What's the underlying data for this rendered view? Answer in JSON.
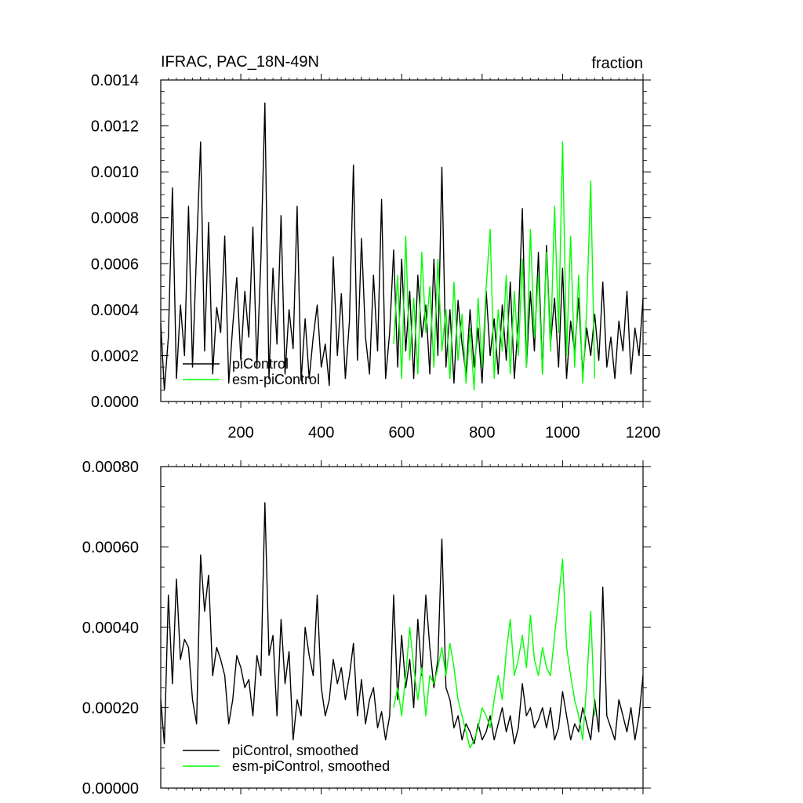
{
  "chart_data": [
    {
      "type": "line",
      "title_left": "IFRAC, PAC_18N-49N",
      "title_right": "fraction",
      "xlim": [
        1,
        1200
      ],
      "ylim": [
        0,
        0.0014
      ],
      "x_ticks": [
        200,
        400,
        600,
        800,
        1000,
        1200
      ],
      "x_tick_labels": [
        "200",
        "400",
        "600",
        "800",
        "1000",
        "1200"
      ],
      "y_ticks": [
        0,
        0.0002,
        0.0004,
        0.0006,
        0.0008,
        0.001,
        0.0012,
        0.0014
      ],
      "y_tick_labels": [
        "0.0000",
        "0.0002",
        "0.0004",
        "0.0006",
        "0.0008",
        "0.0010",
        "0.0012",
        "0.0014"
      ],
      "legend_placement": "lower-left",
      "series": [
        {
          "name": "piControl",
          "color": "#000000",
          "x": [
            1,
            10,
            20,
            30,
            40,
            50,
            60,
            70,
            80,
            90,
            100,
            110,
            120,
            130,
            140,
            150,
            160,
            170,
            180,
            190,
            200,
            210,
            220,
            230,
            240,
            250,
            260,
            270,
            280,
            290,
            300,
            310,
            320,
            330,
            340,
            350,
            360,
            370,
            380,
            390,
            400,
            410,
            420,
            430,
            440,
            450,
            460,
            470,
            480,
            490,
            500,
            510,
            520,
            530,
            540,
            550,
            560,
            570,
            580,
            590,
            600,
            610,
            620,
            630,
            640,
            650,
            660,
            670,
            680,
            690,
            700,
            710,
            720,
            730,
            740,
            750,
            760,
            770,
            780,
            790,
            800,
            810,
            820,
            830,
            840,
            850,
            860,
            870,
            880,
            890,
            900,
            910,
            920,
            930,
            940,
            950,
            960,
            970,
            980,
            990,
            1000,
            1010,
            1020,
            1030,
            1040,
            1050,
            1060,
            1070,
            1080,
            1090,
            1100,
            1110,
            1120,
            1130,
            1140,
            1150,
            1160,
            1170,
            1180,
            1190,
            1200
          ],
          "values": [
            0.00034,
            5e-05,
            0.00028,
            0.00093,
            0.0001,
            0.00042,
            0.0002,
            0.00085,
            0.00015,
            0.00066,
            0.00113,
            0.00022,
            0.00078,
            0.00012,
            0.00041,
            0.0003,
            0.00072,
            8e-05,
            0.00033,
            0.00054,
            0.00018,
            0.00048,
            0.00028,
            0.00076,
            0.00015,
            0.00062,
            0.0013,
            0.0001,
            0.00058,
            0.00025,
            0.00081,
            0.00012,
            0.0004,
            0.00023,
            0.00085,
            9e-05,
            0.00036,
            0.0001,
            0.00028,
            0.00042,
            0.00015,
            0.00025,
            7e-05,
            0.00063,
            0.0002,
            0.00047,
            0.0001,
            0.00035,
            0.00103,
            0.00018,
            0.00071,
            0.00028,
            0.00012,
            0.00055,
            0.00022,
            0.00088,
            0.0001,
            0.0003,
            0.00066,
            0.00015,
            0.00062,
            0.00022,
            0.00048,
            0.0001,
            0.00055,
            0.00028,
            0.00042,
            0.00012,
            0.00062,
            0.0002,
            0.00102,
            0.00015,
            0.0004,
            8e-05,
            0.00044,
            0.00025,
            0.00012,
            0.0004,
            0.00015,
            0.00032,
            8e-05,
            0.00048,
            0.0002,
            0.00036,
            0.00012,
            0.00042,
            0.00018,
            0.00052,
            0.0001,
            0.00035,
            0.00084,
            0.00015,
            0.00048,
            0.00022,
            0.00065,
            0.00012,
            0.00068,
            0.00025,
            0.00045,
            0.00015,
            0.00058,
            0.0001,
            0.00035,
            0.00022,
            0.00045,
            0.00012,
            0.00032,
            0.0002,
            0.00038,
            0.00018,
            0.00052,
            0.00015,
            0.00028,
            0.0001,
            0.00035,
            0.00022,
            0.00048,
            0.00012,
            0.00032,
            0.0002,
            0.00045
          ]
        },
        {
          "name": "esm-piControl",
          "color": "#00ff00",
          "x": [
            580,
            590,
            600,
            610,
            620,
            630,
            640,
            650,
            660,
            670,
            680,
            690,
            700,
            710,
            720,
            730,
            740,
            750,
            760,
            770,
            780,
            790,
            800,
            810,
            820,
            830,
            840,
            850,
            860,
            870,
            880,
            890,
            900,
            910,
            920,
            930,
            940,
            950,
            960,
            970,
            980,
            990,
            1000,
            1010,
            1020,
            1030,
            1040,
            1050,
            1060,
            1070,
            1080
          ],
          "values": [
            0.00025,
            0.00055,
            0.0001,
            0.00072,
            0.00018,
            0.00045,
            0.00012,
            0.00065,
            0.0003,
            0.0005,
            0.00015,
            0.00062,
            0.00022,
            0.0004,
            0.0001,
            0.00052,
            0.00018,
            0.00038,
            8e-05,
            0.00032,
            5e-05,
            0.00045,
            0.00015,
            0.0005,
            0.00075,
            0.0001,
            0.0004,
            0.00022,
            0.00055,
            0.00012,
            0.00048,
            0.0002,
            0.00062,
            0.00015,
            0.00075,
            0.00028,
            0.00055,
            0.00012,
            0.00065,
            0.00022,
            0.00085,
            0.0003,
            0.00113,
            0.0002,
            0.00072,
            0.00015,
            0.00055,
            8e-05,
            0.0004,
            0.00096,
            0.0001
          ]
        }
      ]
    },
    {
      "type": "line",
      "xlim": [
        1,
        1200
      ],
      "ylim": [
        0,
        0.0008
      ],
      "x_ticks": [
        200,
        400,
        600,
        800,
        1000,
        1200
      ],
      "y_ticks": [
        0,
        0.0002,
        0.0004,
        0.0006,
        0.0008
      ],
      "y_tick_labels": [
        "0.00000",
        "0.00020",
        "0.00040",
        "0.00060",
        "0.00080"
      ],
      "legend_placement": "lower-left",
      "series": [
        {
          "name": "piControl, smoothed",
          "color": "#000000",
          "x": [
            1,
            10,
            20,
            30,
            40,
            50,
            60,
            70,
            80,
            90,
            100,
            110,
            120,
            130,
            140,
            150,
            160,
            170,
            180,
            190,
            200,
            210,
            220,
            230,
            240,
            250,
            260,
            270,
            280,
            290,
            300,
            310,
            320,
            330,
            340,
            350,
            360,
            370,
            380,
            390,
            400,
            410,
            420,
            430,
            440,
            450,
            460,
            470,
            480,
            490,
            500,
            510,
            520,
            530,
            540,
            550,
            560,
            570,
            580,
            590,
            600,
            610,
            620,
            630,
            640,
            650,
            660,
            670,
            680,
            690,
            700,
            710,
            720,
            730,
            740,
            750,
            760,
            770,
            780,
            790,
            800,
            810,
            820,
            830,
            840,
            850,
            860,
            870,
            880,
            890,
            900,
            910,
            920,
            930,
            940,
            950,
            960,
            970,
            980,
            990,
            1000,
            1010,
            1020,
            1030,
            1040,
            1050,
            1060,
            1070,
            1080,
            1090,
            1100,
            1110,
            1120,
            1130,
            1140,
            1150,
            1160,
            1170,
            1180,
            1190,
            1200
          ],
          "values": [
            0.00022,
            0.00011,
            0.00048,
            0.00026,
            0.00052,
            0.00032,
            0.00037,
            0.00035,
            0.00022,
            0.00016,
            0.00058,
            0.00044,
            0.00053,
            0.00028,
            0.00035,
            0.00032,
            0.00028,
            0.00016,
            0.00022,
            0.00033,
            0.0003,
            0.00025,
            0.00027,
            0.00018,
            0.00033,
            0.00028,
            0.00071,
            0.00033,
            0.00038,
            0.00018,
            0.00042,
            0.00026,
            0.00034,
            0.00012,
            0.00022,
            0.00018,
            0.0004,
            0.00033,
            0.00028,
            0.00048,
            0.00025,
            0.00018,
            0.00022,
            0.00032,
            0.00026,
            0.0003,
            0.00022,
            0.00028,
            0.00036,
            0.00018,
            0.00027,
            0.00016,
            0.00022,
            0.00025,
            0.00015,
            0.00019,
            0.00012,
            0.00018,
            0.00048,
            0.00022,
            0.00038,
            0.00025,
            0.00032,
            0.0002,
            0.00042,
            0.00028,
            0.00048,
            0.00035,
            0.00025,
            0.00032,
            0.00062,
            0.00025,
            0.00022,
            0.00015,
            0.00018,
            0.00012,
            0.00016,
            0.00014,
            0.00011,
            0.00016,
            0.00012,
            0.00014,
            0.00018,
            0.00012,
            0.00016,
            0.0002,
            0.00014,
            0.00018,
            0.00011,
            0.00015,
            0.00026,
            0.00018,
            0.0002,
            0.00015,
            0.00017,
            0.0002,
            0.00015,
            0.0002,
            0.00012,
            0.00015,
            0.00024,
            0.00018,
            0.00012,
            0.00016,
            0.00014,
            0.0002,
            0.00016,
            0.00012,
            0.00022,
            0.00014,
            0.0005,
            0.00018,
            0.00015,
            0.00012,
            0.00022,
            0.00018,
            0.00014,
            0.0002,
            0.00012,
            0.00018,
            0.00028
          ]
        },
        {
          "name": "esm-piControl, smoothed",
          "color": "#00ff00",
          "x": [
            580,
            590,
            600,
            610,
            620,
            630,
            640,
            650,
            660,
            670,
            680,
            690,
            700,
            710,
            720,
            730,
            740,
            750,
            760,
            770,
            780,
            790,
            800,
            810,
            820,
            830,
            840,
            850,
            860,
            870,
            880,
            890,
            900,
            910,
            920,
            930,
            940,
            950,
            960,
            970,
            980,
            990,
            1000,
            1010,
            1020,
            1030,
            1040,
            1050,
            1060,
            1070,
            1080
          ],
          "values": [
            0.0002,
            0.00025,
            0.00018,
            0.00028,
            0.0004,
            0.0003,
            0.00022,
            0.0003,
            0.00018,
            0.00028,
            0.00026,
            0.0003,
            0.00035,
            0.00028,
            0.00036,
            0.0003,
            0.00022,
            0.00018,
            0.00014,
            0.0001,
            0.00012,
            0.00015,
            0.0002,
            0.00018,
            0.00015,
            0.00022,
            0.00028,
            0.00022,
            0.00034,
            0.00042,
            0.00028,
            0.00032,
            0.00038,
            0.0003,
            0.00043,
            0.00032,
            0.00028,
            0.00035,
            0.0003,
            0.00028,
            0.00038,
            0.00047,
            0.00057,
            0.00035,
            0.00028,
            0.00022,
            0.00018,
            0.00012,
            0.00026,
            0.00044,
            0.00018
          ]
        }
      ]
    }
  ]
}
